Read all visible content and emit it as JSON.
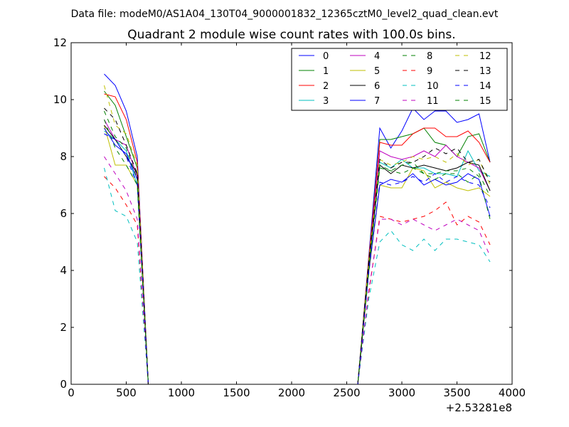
{
  "chart_data": {
    "type": "line",
    "suptitle": "Data file: modeM0/AS1A04_130T04_9000001832_12365cztM0_level2_quad_clean.evt",
    "title": "Quadrant 2 module wise count rates with 100.0s bins.",
    "xlabel": "",
    "ylabel": "",
    "x_offset_label": "+2.53281e8",
    "xlim": [
      0,
      4000
    ],
    "ylim": [
      0,
      12
    ],
    "x_ticks": [
      "0",
      "500",
      "1000",
      "1500",
      "2000",
      "2500",
      "3000",
      "3500",
      "4000"
    ],
    "y_ticks": [
      "0",
      "2",
      "4",
      "6",
      "8",
      "10",
      "12"
    ],
    "grid": false,
    "legend_position": "top-right",
    "x": [
      300,
      400,
      500,
      600,
      700,
      800,
      900,
      1000,
      1100,
      1200,
      1300,
      1400,
      1500,
      1600,
      1700,
      1800,
      1900,
      2000,
      2100,
      2200,
      2300,
      2400,
      2500,
      2600,
      2700,
      2800,
      2900,
      3000,
      3100,
      3200,
      3300,
      3400,
      3500,
      3600,
      3700,
      3800
    ],
    "series": [
      {
        "name": "0",
        "color": "#0000ff",
        "dash": "solid",
        "values": [
          10.9,
          10.5,
          9.6,
          8.0,
          0,
          0,
          0,
          0,
          0,
          0,
          0,
          0,
          0,
          0,
          0,
          0,
          0,
          0,
          0,
          0,
          0,
          0,
          0,
          0,
          4.5,
          9.0,
          8.3,
          8.9,
          9.7,
          9.3,
          9.6,
          9.6,
          9.2,
          9.3,
          9.5,
          7.8
        ]
      },
      {
        "name": "1",
        "color": "#008000",
        "dash": "solid",
        "values": [
          10.3,
          9.8,
          8.7,
          7.6,
          0,
          0,
          0,
          0,
          0,
          0,
          0,
          0,
          0,
          0,
          0,
          0,
          0,
          0,
          0,
          0,
          0,
          0,
          0,
          0,
          4.4,
          8.6,
          8.6,
          8.7,
          8.8,
          9.0,
          8.5,
          8.4,
          8.0,
          8.7,
          8.8,
          7.8
        ]
      },
      {
        "name": "2",
        "color": "#ff0000",
        "dash": "solid",
        "values": [
          10.2,
          10.1,
          9.3,
          7.8,
          0,
          0,
          0,
          0,
          0,
          0,
          0,
          0,
          0,
          0,
          0,
          0,
          0,
          0,
          0,
          0,
          0,
          0,
          0,
          0,
          4.4,
          8.5,
          8.4,
          8.4,
          8.8,
          9.0,
          9.0,
          8.7,
          8.7,
          8.9,
          8.5,
          7.8
        ]
      },
      {
        "name": "3",
        "color": "#00bfbf",
        "dash": "solid",
        "values": [
          8.9,
          8.6,
          8.2,
          7.0,
          0,
          0,
          0,
          0,
          0,
          0,
          0,
          0,
          0,
          0,
          0,
          0,
          0,
          0,
          0,
          0,
          0,
          0,
          0,
          0,
          4.1,
          7.8,
          7.6,
          7.9,
          7.6,
          7.6,
          7.4,
          7.4,
          7.3,
          8.2,
          7.5,
          7.3
        ]
      },
      {
        "name": "4",
        "color": "#bf00bf",
        "dash": "solid",
        "values": [
          9.3,
          8.6,
          8.4,
          7.3,
          0,
          0,
          0,
          0,
          0,
          0,
          0,
          0,
          0,
          0,
          0,
          0,
          0,
          0,
          0,
          0,
          0,
          0,
          0,
          0,
          4.2,
          8.2,
          8.0,
          7.9,
          8.0,
          8.2,
          8.0,
          8.4,
          8.0,
          7.8,
          7.6,
          6.8
        ]
      },
      {
        "name": "5",
        "color": "#bfbf00",
        "dash": "solid",
        "values": [
          9.1,
          7.7,
          7.7,
          7.0,
          0,
          0,
          0,
          0,
          0,
          0,
          0,
          0,
          0,
          0,
          0,
          0,
          0,
          0,
          0,
          0,
          0,
          0,
          0,
          0,
          3.9,
          7.0,
          6.9,
          6.9,
          7.6,
          7.5,
          6.9,
          7.1,
          6.9,
          6.8,
          6.9,
          6.6
        ]
      },
      {
        "name": "6",
        "color": "#000000",
        "dash": "solid",
        "values": [
          9.1,
          8.6,
          8.0,
          7.4,
          0,
          0,
          0,
          0,
          0,
          0,
          0,
          0,
          0,
          0,
          0,
          0,
          0,
          0,
          0,
          0,
          0,
          0,
          0,
          0,
          4.2,
          7.7,
          7.4,
          7.7,
          7.6,
          7.7,
          7.6,
          7.5,
          7.6,
          7.8,
          7.7,
          6.8
        ]
      },
      {
        "name": "7",
        "color": "#0000ff",
        "dash": "solid",
        "values": [
          9.0,
          8.4,
          8.1,
          7.2,
          0,
          0,
          0,
          0,
          0,
          0,
          0,
          0,
          0,
          0,
          0,
          0,
          0,
          0,
          0,
          0,
          0,
          0,
          0,
          0,
          4.0,
          7.0,
          7.2,
          7.1,
          7.4,
          7.0,
          7.2,
          7.0,
          7.1,
          7.4,
          7.2,
          5.9
        ]
      },
      {
        "name": "8",
        "color": "#008000",
        "dash": "dashed",
        "values": [
          9.6,
          8.7,
          8.3,
          7.2,
          0,
          0,
          0,
          0,
          0,
          0,
          0,
          0,
          0,
          0,
          0,
          0,
          0,
          0,
          0,
          0,
          0,
          0,
          0,
          0,
          4.1,
          7.7,
          7.5,
          7.7,
          7.8,
          7.4,
          7.4,
          7.5,
          7.5,
          7.6,
          7.3,
          5.8
        ]
      },
      {
        "name": "9",
        "color": "#ff0000",
        "dash": "dashed",
        "values": [
          7.3,
          6.9,
          6.3,
          5.6,
          0,
          0,
          0,
          0,
          0,
          0,
          0,
          0,
          0,
          0,
          0,
          0,
          0,
          0,
          0,
          0,
          0,
          0,
          0,
          0,
          3.2,
          5.9,
          5.8,
          5.7,
          5.8,
          5.9,
          6.1,
          6.4,
          5.6,
          5.9,
          5.7,
          4.9
        ]
      },
      {
        "name": "10",
        "color": "#00bfbf",
        "dash": "dashed",
        "values": [
          7.6,
          6.1,
          5.9,
          5.0,
          0,
          0,
          0,
          0,
          0,
          0,
          0,
          0,
          0,
          0,
          0,
          0,
          0,
          0,
          0,
          0,
          0,
          0,
          0,
          0,
          3.0,
          5.0,
          5.4,
          4.9,
          4.7,
          5.1,
          4.7,
          5.1,
          5.1,
          5.0,
          4.9,
          4.3
        ]
      },
      {
        "name": "11",
        "color": "#bf00bf",
        "dash": "dashed",
        "values": [
          8.0,
          7.4,
          6.8,
          5.8,
          0,
          0,
          0,
          0,
          0,
          0,
          0,
          0,
          0,
          0,
          0,
          0,
          0,
          0,
          0,
          0,
          0,
          0,
          0,
          0,
          3.3,
          5.8,
          5.8,
          5.6,
          5.8,
          5.6,
          5.4,
          5.6,
          5.8,
          5.6,
          5.4,
          4.5
        ]
      },
      {
        "name": "12",
        "color": "#bfbf00",
        "dash": "dashed",
        "values": [
          10.5,
          9.1,
          8.8,
          7.7,
          0,
          0,
          0,
          0,
          0,
          0,
          0,
          0,
          0,
          0,
          0,
          0,
          0,
          0,
          0,
          0,
          0,
          0,
          0,
          0,
          4.3,
          7.9,
          7.7,
          7.8,
          8.0,
          7.9,
          8.0,
          7.8,
          8.1,
          7.7,
          7.9,
          7.0
        ]
      },
      {
        "name": "13",
        "color": "#000000",
        "dash": "dashed",
        "values": [
          9.7,
          9.3,
          8.4,
          7.4,
          0,
          0,
          0,
          0,
          0,
          0,
          0,
          0,
          0,
          0,
          0,
          0,
          0,
          0,
          0,
          0,
          0,
          0,
          0,
          0,
          4.3,
          7.9,
          7.6,
          7.8,
          7.8,
          8.0,
          8.3,
          8.1,
          8.3,
          7.8,
          7.9,
          7.1
        ]
      },
      {
        "name": "14",
        "color": "#0000ff",
        "dash": "dashed",
        "values": [
          8.8,
          8.6,
          8.0,
          7.0,
          0,
          0,
          0,
          0,
          0,
          0,
          0,
          0,
          0,
          0,
          0,
          0,
          0,
          0,
          0,
          0,
          0,
          0,
          0,
          0,
          3.9,
          7.1,
          7.0,
          7.1,
          7.3,
          7.1,
          7.4,
          7.1,
          7.3,
          7.1,
          7.0,
          6.2
        ]
      },
      {
        "name": "15",
        "color": "#008000",
        "dash": "dashed",
        "values": [
          9.3,
          8.3,
          7.7,
          7.0,
          0,
          0,
          0,
          0,
          0,
          0,
          0,
          0,
          0,
          0,
          0,
          0,
          0,
          0,
          0,
          0,
          0,
          0,
          0,
          0,
          4.0,
          7.6,
          7.5,
          7.4,
          7.6,
          7.4,
          7.2,
          7.4,
          7.4,
          7.1,
          7.4,
          6.6
        ]
      }
    ]
  }
}
